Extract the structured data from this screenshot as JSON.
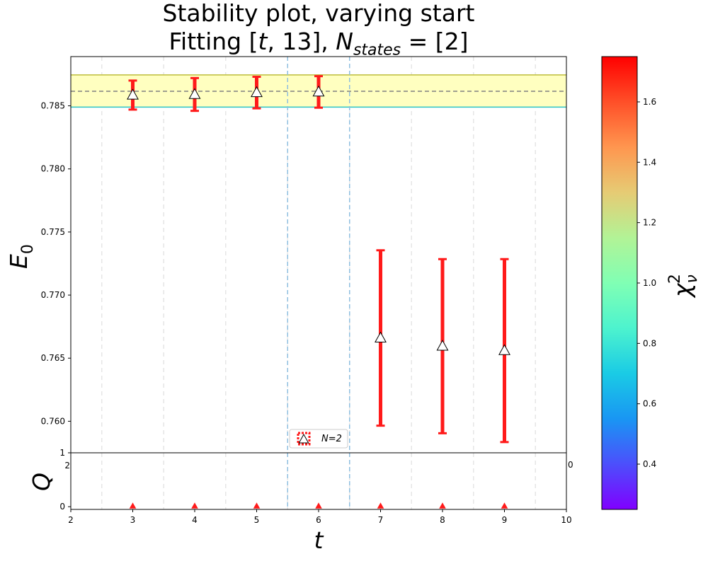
{
  "chart_data": {
    "type": "scatter",
    "title": {
      "line1": "Stability plot, varying start",
      "line2_prefix": "Fitting [",
      "line2_var": "t",
      "line2_mid": ", 13], ",
      "line2_N": "N",
      "line2_sub": "states",
      "line2_suffix": " =  [2]"
    },
    "main_panel": {
      "ylabel_E": "E",
      "ylabel_sub": "0",
      "ylim": [
        0.7575,
        0.7889
      ],
      "yticks": [
        {
          "value": 0.76,
          "label": "0.760"
        },
        {
          "value": 0.765,
          "label": "0.765"
        },
        {
          "value": 0.77,
          "label": "0.770"
        },
        {
          "value": 0.775,
          "label": "0.775"
        },
        {
          "value": 0.78,
          "label": "0.780"
        },
        {
          "value": 0.785,
          "label": "0.785"
        }
      ],
      "points": [
        {
          "t": 3,
          "E0": 0.78585,
          "err": 0.00115
        },
        {
          "t": 4,
          "E0": 0.7859,
          "err": 0.0013
        },
        {
          "t": 5,
          "E0": 0.78605,
          "err": 0.00125
        },
        {
          "t": 6,
          "E0": 0.7861,
          "err": 0.00125
        },
        {
          "t": 7,
          "E0": 0.7666,
          "err": 0.00695
        },
        {
          "t": 8,
          "E0": 0.76595,
          "err": 0.0069
        },
        {
          "t": 9,
          "E0": 0.7656,
          "err": 0.00725
        }
      ],
      "band": {
        "center": 0.78615,
        "low": 0.7849,
        "high": 0.78745
      },
      "chosen_region": [
        5.5,
        6.5
      ],
      "legend_label": "N=2"
    },
    "q_panel": {
      "ylabel": "Q",
      "ylim": [
        -0.05,
        1.0
      ],
      "yticks": [
        {
          "value": 0,
          "label": "0"
        },
        {
          "value": 1,
          "label": "1"
        }
      ],
      "values": [
        {
          "t": 3,
          "q": 0
        },
        {
          "t": 4,
          "q": 0
        },
        {
          "t": 5,
          "q": 0
        },
        {
          "t": 6,
          "q": 0
        },
        {
          "t": 7,
          "q": 0
        },
        {
          "t": 8,
          "q": 0
        },
        {
          "t": 9,
          "q": 0
        }
      ],
      "overlap_tick_left": "2",
      "overlap_tick_right": "0"
    },
    "x_axis": {
      "xlabel": "t",
      "xlim": [
        2,
        10
      ],
      "xticks": [
        2,
        3,
        4,
        5,
        6,
        7,
        8,
        9,
        10
      ]
    },
    "colorbar": {
      "label_chi": "χ",
      "label_sub": "ν",
      "label_sup": "2",
      "range": [
        0.25,
        1.75
      ],
      "ticks": [
        {
          "value": 0.4,
          "label": "0.4"
        },
        {
          "value": 0.6,
          "label": "0.6"
        },
        {
          "value": 0.8,
          "label": "0.8"
        },
        {
          "value": 1.0,
          "label": "1.0"
        },
        {
          "value": 1.2,
          "label": "1.2"
        },
        {
          "value": 1.4,
          "label": "1.4"
        },
        {
          "value": 1.6,
          "label": "1.6"
        }
      ],
      "colormap": "rainbow"
    },
    "colors": {
      "errorbar": "#ff1a1a",
      "marker_fill": "#ffffff",
      "band_fill": "#ffffc0",
      "band_edge": "#bdbd3a",
      "band_low_line": "#2ec4c4",
      "center_line": "#808080",
      "region_line": "#8fbfe0",
      "grid": "#e6e6e6"
    }
  }
}
